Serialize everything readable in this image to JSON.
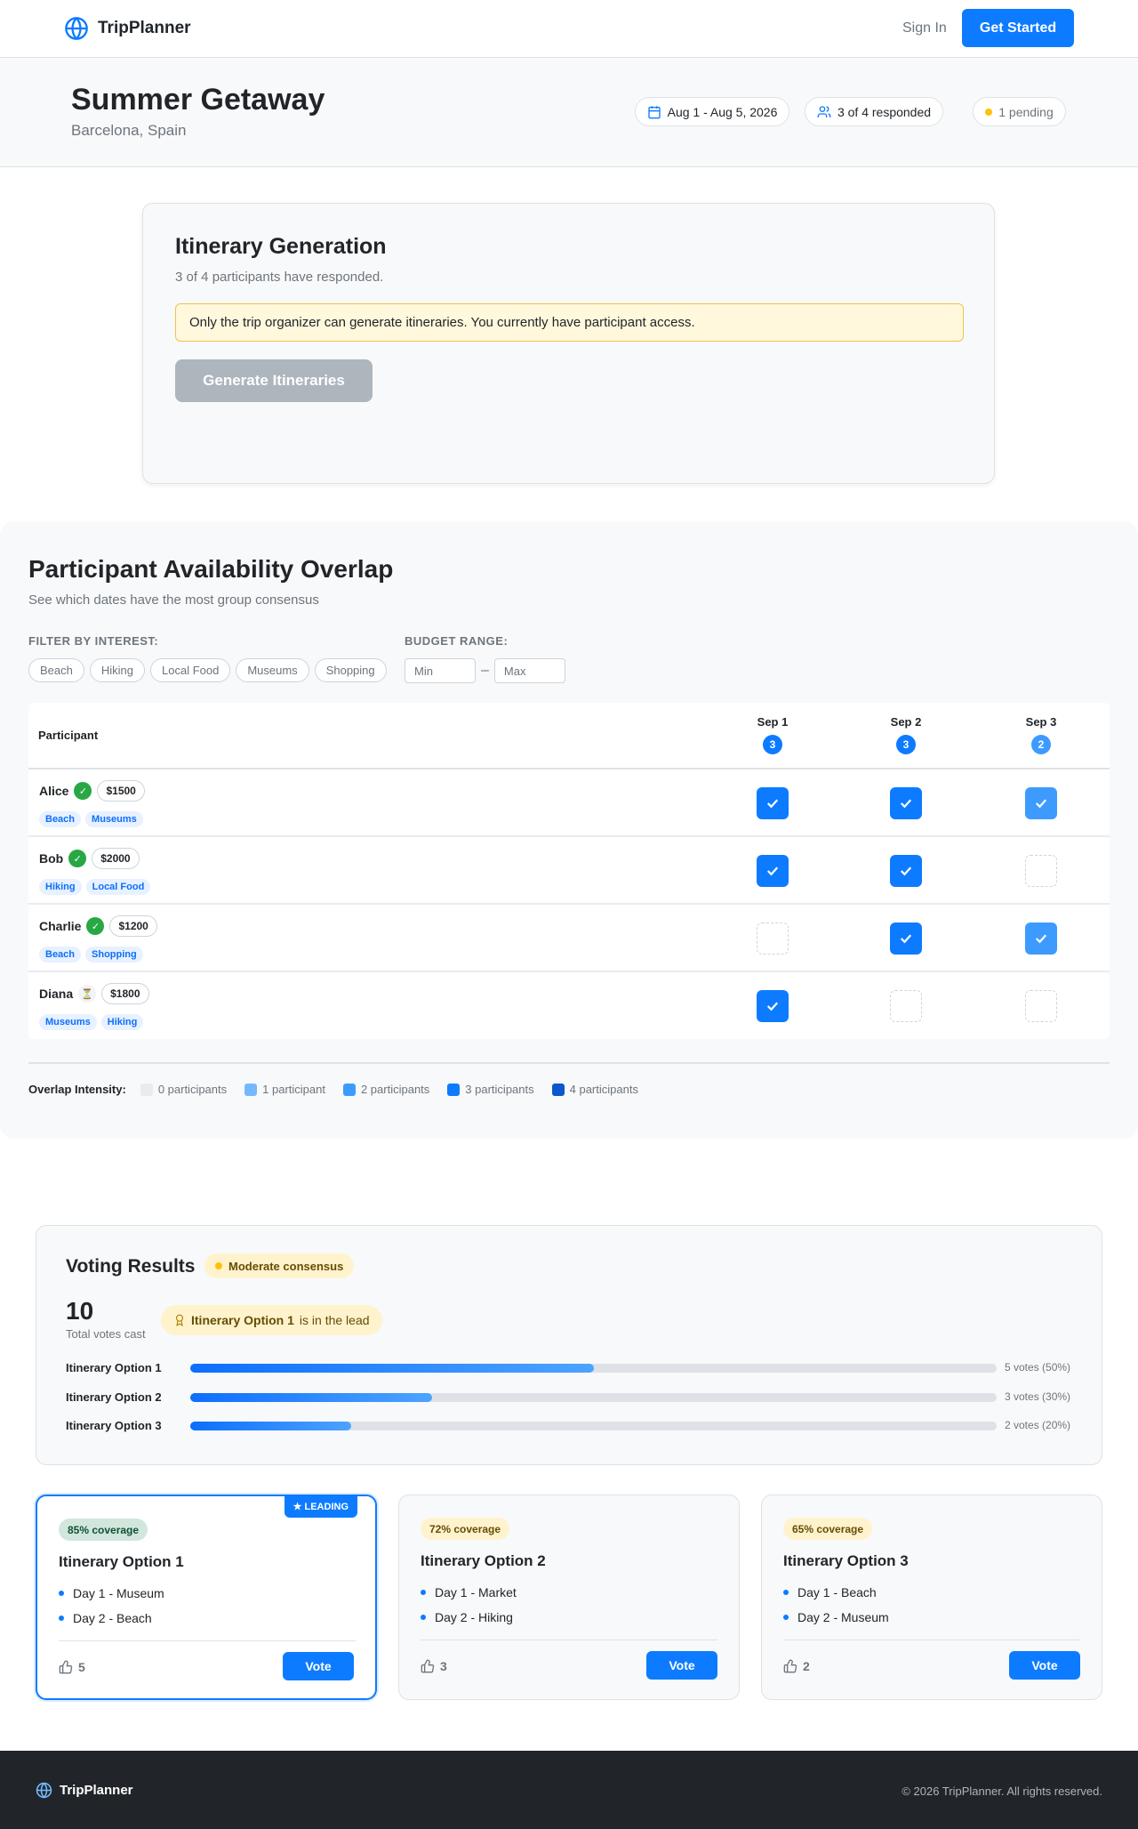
{
  "header": {
    "brand": "TripPlanner",
    "sign_in": "Sign In",
    "cta": "Get Started"
  },
  "trip": {
    "title": "Summer Getaway",
    "location": "Barcelona, Spain",
    "dates": "Aug 1 - Aug 5, 2026",
    "responded": "3 of 4 responded",
    "pending": "1 pending"
  },
  "itinerary_generation": {
    "title": "Itinerary Generation",
    "subtitle": "3 of 4 participants have responded.",
    "notice": "Only the trip organizer can generate itineraries. You currently have participant access.",
    "button": "Generate Itineraries"
  },
  "availability": {
    "title": "Participant Availability Overlap",
    "subtitle": "See which dates have the most group consensus",
    "filter_label": "FILTER BY INTEREST:",
    "interests": [
      "Beach",
      "Hiking",
      "Local Food",
      "Museums",
      "Shopping"
    ],
    "budget_label": "BUDGET RANGE:",
    "budget_min_placeholder": "Min",
    "budget_separator": "–",
    "budget_max_placeholder": "Max",
    "table": {
      "participant_header": "Participant",
      "dates": [
        {
          "label": "Sep 1",
          "count": 3
        },
        {
          "label": "Sep 2",
          "count": 3
        },
        {
          "label": "Sep 3",
          "count": 2
        }
      ],
      "rows": [
        {
          "name": "Alice",
          "status_icon": "✓",
          "budget": "$1500",
          "interests": [
            "Beach",
            "Museums"
          ],
          "available": [
            true,
            true,
            true
          ]
        },
        {
          "name": "Bob",
          "status_icon": "✓",
          "budget": "$2000",
          "interests": [
            "Hiking",
            "Local Food"
          ],
          "available": [
            true,
            true,
            false
          ]
        },
        {
          "name": "Charlie",
          "status_icon": "✓",
          "budget": "$1200",
          "interests": [
            "Beach",
            "Shopping"
          ],
          "available": [
            false,
            true,
            true
          ]
        },
        {
          "name": "Diana",
          "status_icon": "⏳",
          "budget": "$1800",
          "interests": [
            "Museums",
            "Hiking"
          ],
          "available": [
            true,
            false,
            false
          ]
        }
      ]
    },
    "legend": {
      "label": "Overlap Intensity:",
      "levels": [
        {
          "label": "0 participants",
          "color": "#e9ecef"
        },
        {
          "label": "1 participant",
          "color": "#74b9ff"
        },
        {
          "label": "2 participants",
          "color": "#3d9bff"
        },
        {
          "label": "3 participants",
          "color": "#0d7bff"
        },
        {
          "label": "4 participants",
          "color": "#0a58ca"
        }
      ]
    }
  },
  "voting": {
    "title": "Voting Results",
    "consensus": "Moderate consensus",
    "total": 10,
    "total_label": "Total votes cast",
    "leader": "Itinerary Option 1",
    "leader_suffix": "is in the lead",
    "options": [
      {
        "name": "Itinerary Option 1",
        "percent": 50,
        "label": "5 votes (50%)"
      },
      {
        "name": "Itinerary Option 2",
        "percent": 30,
        "label": "3 votes (30%)"
      },
      {
        "name": "Itinerary Option 3",
        "percent": 20,
        "label": "2 votes (20%)"
      }
    ]
  },
  "itineraries": [
    {
      "leading": "★ LEADING",
      "coverage": "85% coverage",
      "title": "Itinerary Option 1",
      "days": [
        "Day 1 - Museum",
        "Day 2 - Beach"
      ],
      "votes": 5,
      "button": "Vote"
    },
    {
      "coverage": "72% coverage",
      "title": "Itinerary Option 2",
      "days": [
        "Day 1 - Market",
        "Day 2 - Hiking"
      ],
      "votes": 3,
      "button": "Vote"
    },
    {
      "coverage": "65% coverage",
      "title": "Itinerary Option 3",
      "days": [
        "Day 1 - Beach",
        "Day 2 - Museum"
      ],
      "votes": 2,
      "button": "Vote"
    }
  ],
  "footer": {
    "brand": "TripPlanner",
    "copyright": "© 2026 TripPlanner. All rights reserved."
  }
}
